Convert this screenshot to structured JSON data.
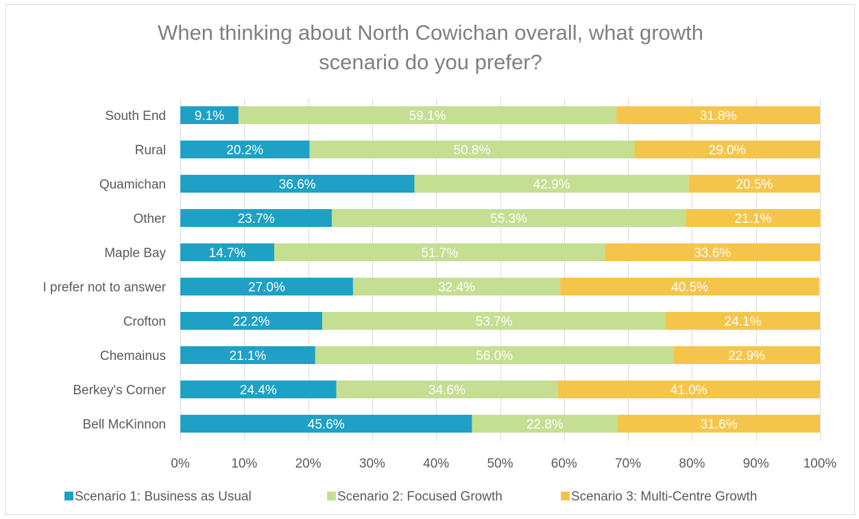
{
  "chart_data": {
    "type": "bar",
    "orientation": "horizontal",
    "stacked": "100%",
    "title": "When thinking about North Cowichan overall, what growth scenario do you prefer?",
    "title_lines": [
      "When thinking about North Cowichan overall, what growth",
      "scenario do you prefer?"
    ],
    "categories": [
      "South End",
      "Rural",
      "Quamichan",
      "Other",
      "Maple Bay",
      "I prefer not to answer",
      "Crofton",
      "Chemainus",
      "Berkey's Corner",
      "Bell McKinnon"
    ],
    "series": [
      {
        "name": "Scenario 1: Business as Usual",
        "color": "#1fa1c5",
        "values": [
          9.1,
          20.2,
          36.6,
          23.7,
          14.7,
          27.0,
          22.2,
          21.1,
          24.4,
          45.6
        ]
      },
      {
        "name": "Scenario 2: Focused Growth",
        "color": "#c4df92",
        "values": [
          59.1,
          50.8,
          42.9,
          55.3,
          51.7,
          32.4,
          53.7,
          56.0,
          34.6,
          22.8
        ]
      },
      {
        "name": "Scenario 3: Multi-Centre Growth",
        "color": "#f5c54b",
        "values": [
          31.8,
          29.0,
          20.5,
          21.1,
          33.6,
          40.5,
          24.1,
          22.9,
          41.0,
          31.6
        ]
      }
    ],
    "xlim": [
      0,
      100
    ],
    "xticks": [
      "0%",
      "10%",
      "20%",
      "30%",
      "40%",
      "50%",
      "60%",
      "70%",
      "80%",
      "90%",
      "100%"
    ],
    "grid": true,
    "legend_position": "bottom",
    "data_label_format": "percent_one_decimal"
  }
}
